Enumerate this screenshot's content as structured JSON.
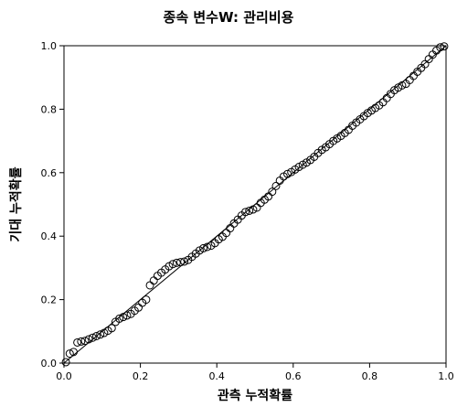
{
  "chart_data": {
    "type": "scatter",
    "title": "종속 변수W: 관리비용",
    "xlabel": "관측 누적확률",
    "ylabel": "기대 누적확률",
    "xlim": [
      0.0,
      1.0
    ],
    "ylim": [
      0.0,
      1.0
    ],
    "xticks": [
      "0.0",
      "0.2",
      "0.4",
      "0.6",
      "0.8",
      "1.0"
    ],
    "yticks": [
      "0.0",
      "0.2",
      "0.4",
      "0.6",
      "0.8",
      "1.0"
    ],
    "grid": false,
    "reference_line": {
      "from": [
        0,
        0
      ],
      "to": [
        1,
        1
      ]
    },
    "series": [
      {
        "marker": "open-circle",
        "x": [
          0.005,
          0.015,
          0.025,
          0.035,
          0.045,
          0.055,
          0.065,
          0.075,
          0.085,
          0.095,
          0.105,
          0.115,
          0.125,
          0.135,
          0.145,
          0.155,
          0.165,
          0.175,
          0.185,
          0.195,
          0.205,
          0.215,
          0.225,
          0.235,
          0.245,
          0.255,
          0.265,
          0.275,
          0.285,
          0.295,
          0.305,
          0.315,
          0.325,
          0.335,
          0.345,
          0.355,
          0.365,
          0.375,
          0.385,
          0.395,
          0.405,
          0.415,
          0.425,
          0.435,
          0.445,
          0.455,
          0.465,
          0.475,
          0.485,
          0.495,
          0.505,
          0.515,
          0.525,
          0.535,
          0.545,
          0.555,
          0.565,
          0.575,
          0.585,
          0.595,
          0.605,
          0.615,
          0.625,
          0.635,
          0.645,
          0.655,
          0.665,
          0.675,
          0.685,
          0.695,
          0.705,
          0.715,
          0.725,
          0.735,
          0.745,
          0.755,
          0.765,
          0.775,
          0.785,
          0.795,
          0.805,
          0.815,
          0.825,
          0.835,
          0.845,
          0.855,
          0.865,
          0.875,
          0.885,
          0.895,
          0.905,
          0.915,
          0.925,
          0.935,
          0.945,
          0.955,
          0.965,
          0.975,
          0.985,
          0.995
        ],
        "y": [
          0.003,
          0.03,
          0.035,
          0.065,
          0.068,
          0.07,
          0.075,
          0.08,
          0.085,
          0.09,
          0.095,
          0.102,
          0.11,
          0.13,
          0.14,
          0.145,
          0.15,
          0.155,
          0.165,
          0.175,
          0.19,
          0.2,
          0.245,
          0.26,
          0.275,
          0.285,
          0.295,
          0.305,
          0.312,
          0.316,
          0.318,
          0.32,
          0.325,
          0.335,
          0.345,
          0.355,
          0.362,
          0.366,
          0.37,
          0.378,
          0.39,
          0.398,
          0.41,
          0.425,
          0.44,
          0.452,
          0.465,
          0.476,
          0.48,
          0.484,
          0.49,
          0.505,
          0.515,
          0.525,
          0.54,
          0.558,
          0.575,
          0.588,
          0.596,
          0.602,
          0.61,
          0.618,
          0.625,
          0.632,
          0.64,
          0.65,
          0.662,
          0.672,
          0.68,
          0.69,
          0.7,
          0.708,
          0.716,
          0.725,
          0.735,
          0.748,
          0.758,
          0.768,
          0.778,
          0.788,
          0.796,
          0.804,
          0.812,
          0.822,
          0.835,
          0.848,
          0.86,
          0.868,
          0.875,
          0.88,
          0.892,
          0.905,
          0.918,
          0.93,
          0.942,
          0.958,
          0.972,
          0.985,
          0.995,
          0.998
        ]
      }
    ]
  }
}
